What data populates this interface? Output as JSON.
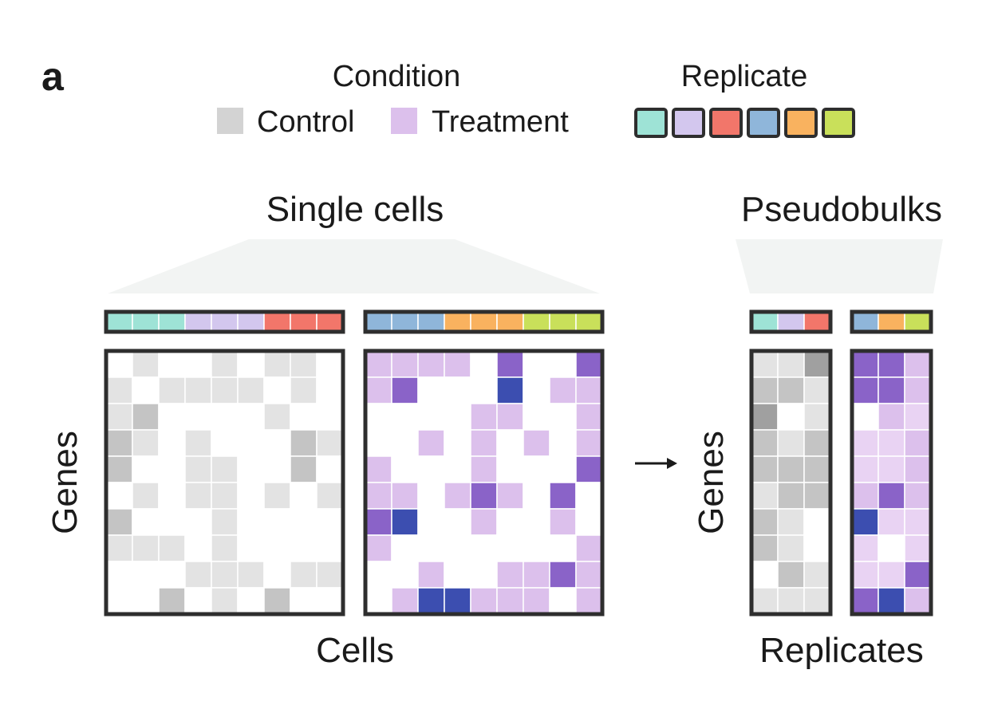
{
  "panel_label": "a",
  "legend": {
    "condition_title": "Condition",
    "condition_items": [
      {
        "label": "Control",
        "color": "#d3d3d3"
      },
      {
        "label": "Treatment",
        "color": "#dcc0ec"
      }
    ],
    "replicate_title": "Replicate",
    "replicate_colors": [
      "#9ee3d6",
      "#d3c7ee",
      "#f2766a",
      "#8fb6da",
      "#f9b25f",
      "#c9e05a"
    ]
  },
  "colors": {
    "frame": "#2e2e2e",
    "funnel": "#f2f4f3",
    "arrow": "#1a1a1a",
    "control_levels": [
      "#ffffff",
      "#e3e3e3",
      "#c4c4c4",
      "#a0a0a0"
    ],
    "treatment_levels": [
      "#ffffff",
      "#e9d3f3",
      "#dcc0ec",
      "#8a63c8",
      "#3c4eb0"
    ]
  },
  "single_cells": {
    "title": "Single cells",
    "x_label": "Cells",
    "y_label": "Genes",
    "control": {
      "replicate_strip": [
        0,
        0,
        0,
        1,
        1,
        1,
        2,
        2,
        2
      ],
      "cells": [
        [
          0,
          1,
          0,
          0,
          1,
          0,
          1,
          1,
          0
        ],
        [
          1,
          0,
          1,
          1,
          1,
          1,
          0,
          1,
          0
        ],
        [
          1,
          2,
          0,
          0,
          0,
          0,
          1,
          0,
          0
        ],
        [
          2,
          1,
          0,
          1,
          0,
          0,
          0,
          2,
          1
        ],
        [
          2,
          0,
          0,
          1,
          1,
          0,
          0,
          2,
          0
        ],
        [
          0,
          1,
          0,
          1,
          1,
          0,
          1,
          0,
          1
        ],
        [
          2,
          0,
          0,
          0,
          1,
          0,
          0,
          0,
          0
        ],
        [
          1,
          1,
          1,
          0,
          1,
          0,
          0,
          0,
          0
        ],
        [
          0,
          0,
          0,
          1,
          1,
          1,
          0,
          1,
          1
        ],
        [
          0,
          0,
          2,
          0,
          1,
          0,
          2,
          0,
          0
        ]
      ]
    },
    "treatment": {
      "replicate_strip": [
        3,
        3,
        3,
        4,
        4,
        4,
        5,
        5,
        5
      ],
      "cells": [
        [
          2,
          2,
          2,
          2,
          0,
          3,
          0,
          0,
          3
        ],
        [
          2,
          3,
          0,
          0,
          0,
          4,
          0,
          2,
          2
        ],
        [
          0,
          0,
          0,
          0,
          2,
          2,
          0,
          0,
          2
        ],
        [
          0,
          0,
          2,
          0,
          2,
          0,
          2,
          0,
          2
        ],
        [
          2,
          0,
          0,
          0,
          2,
          0,
          0,
          0,
          3
        ],
        [
          2,
          2,
          0,
          2,
          3,
          2,
          0,
          3,
          0
        ],
        [
          3,
          4,
          0,
          0,
          2,
          0,
          0,
          2,
          0
        ],
        [
          2,
          0,
          0,
          0,
          0,
          0,
          0,
          0,
          2
        ],
        [
          0,
          0,
          2,
          0,
          0,
          2,
          2,
          3,
          2
        ],
        [
          0,
          2,
          4,
          4,
          2,
          2,
          2,
          0,
          2
        ]
      ]
    }
  },
  "pseudobulks": {
    "title": "Pseudobulks",
    "x_label": "Replicates",
    "y_label": "Genes",
    "control": {
      "replicate_strip": [
        0,
        1,
        2
      ],
      "cells": [
        [
          1,
          1,
          3
        ],
        [
          2,
          2,
          1
        ],
        [
          3,
          0,
          1
        ],
        [
          2,
          1,
          2
        ],
        [
          2,
          2,
          2
        ],
        [
          1,
          2,
          2
        ],
        [
          2,
          1,
          0
        ],
        [
          2,
          1,
          0
        ],
        [
          0,
          2,
          1
        ],
        [
          1,
          1,
          1
        ]
      ]
    },
    "treatment": {
      "replicate_strip": [
        3,
        4,
        5
      ],
      "cells": [
        [
          3,
          3,
          2
        ],
        [
          3,
          3,
          2
        ],
        [
          0,
          2,
          1
        ],
        [
          1,
          1,
          2
        ],
        [
          1,
          1,
          2
        ],
        [
          2,
          3,
          2
        ],
        [
          4,
          1,
          1
        ],
        [
          1,
          0,
          1
        ],
        [
          1,
          1,
          3
        ],
        [
          3,
          4,
          2
        ]
      ]
    }
  }
}
